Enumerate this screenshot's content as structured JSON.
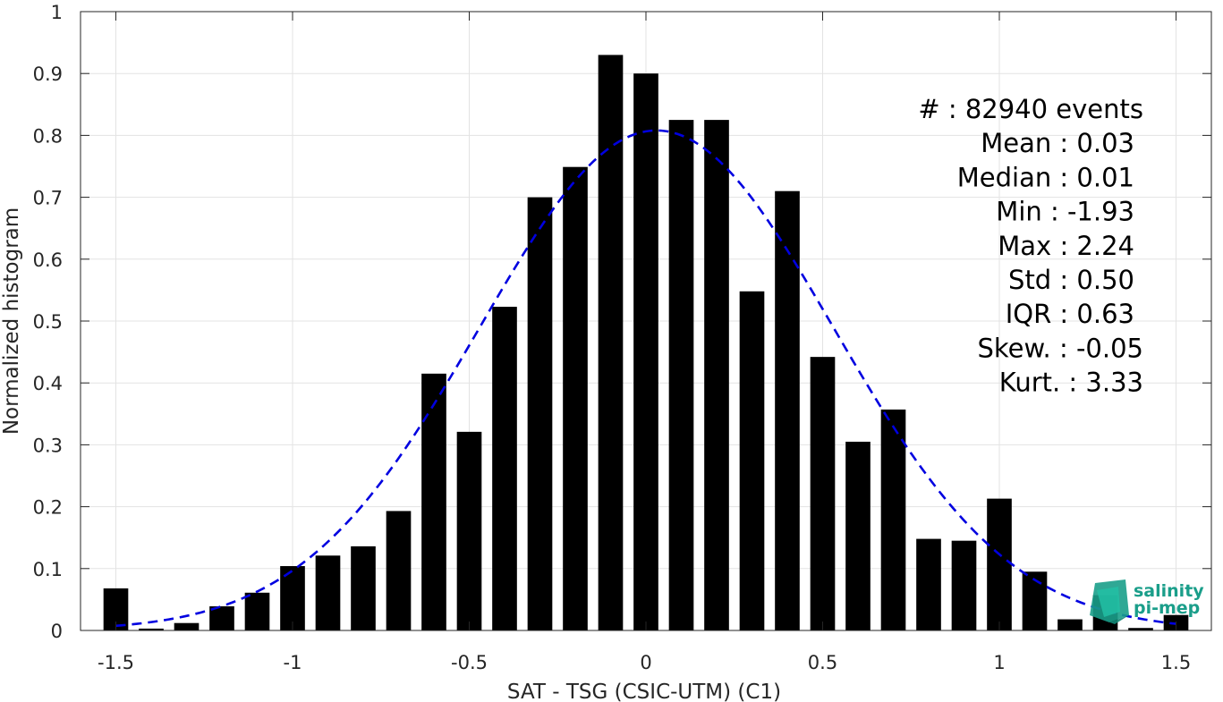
{
  "chart_data": {
    "type": "bar",
    "xlabel": "SAT - TSG (CSIC-UTM) (C1)",
    "ylabel": "Normalized histogram",
    "xlim": [
      -1.6,
      1.6
    ],
    "ylim": [
      0,
      1
    ],
    "xticks": [
      -1.5,
      -1,
      -0.5,
      0,
      0.5,
      1,
      1.5
    ],
    "xtick_labels": [
      "-1.5",
      "-1",
      "-0.5",
      "0",
      "0.5",
      "1",
      "1.5"
    ],
    "yticks": [
      0,
      0.1,
      0.2,
      0.3,
      0.4,
      0.5,
      0.6,
      0.7,
      0.8,
      0.9,
      1
    ],
    "ytick_labels": [
      "0",
      "0.1",
      "0.2",
      "0.3",
      "0.4",
      "0.5",
      "0.6",
      "0.7",
      "0.8",
      "0.9",
      "1"
    ],
    "grid": true,
    "bin_width": 0.1,
    "bins": [
      {
        "x": -1.5,
        "y": 0.068
      },
      {
        "x": -1.4,
        "y": 0.003
      },
      {
        "x": -1.3,
        "y": 0.012
      },
      {
        "x": -1.2,
        "y": 0.039
      },
      {
        "x": -1.1,
        "y": 0.061
      },
      {
        "x": -1.0,
        "y": 0.104
      },
      {
        "x": -0.9,
        "y": 0.121
      },
      {
        "x": -0.8,
        "y": 0.136
      },
      {
        "x": -0.7,
        "y": 0.193
      },
      {
        "x": -0.6,
        "y": 0.415
      },
      {
        "x": -0.5,
        "y": 0.321
      },
      {
        "x": -0.4,
        "y": 0.523
      },
      {
        "x": -0.3,
        "y": 0.7
      },
      {
        "x": -0.2,
        "y": 0.749
      },
      {
        "x": -0.1,
        "y": 0.93
      },
      {
        "x": 0.0,
        "y": 0.9
      },
      {
        "x": 0.1,
        "y": 0.825
      },
      {
        "x": 0.2,
        "y": 0.825
      },
      {
        "x": 0.3,
        "y": 0.548
      },
      {
        "x": 0.4,
        "y": 0.71
      },
      {
        "x": 0.5,
        "y": 0.442
      },
      {
        "x": 0.6,
        "y": 0.305
      },
      {
        "x": 0.7,
        "y": 0.357
      },
      {
        "x": 0.8,
        "y": 0.148
      },
      {
        "x": 0.9,
        "y": 0.145
      },
      {
        "x": 1.0,
        "y": 0.213
      },
      {
        "x": 1.1,
        "y": 0.095
      },
      {
        "x": 1.2,
        "y": 0.018
      },
      {
        "x": 1.3,
        "y": 0.057
      },
      {
        "x": 1.4,
        "y": 0.004
      },
      {
        "x": 1.5,
        "y": 0.025
      }
    ],
    "fit_curve": {
      "style": "dashed",
      "color": "#0000e0",
      "peak": 0.808,
      "mean": 0.03,
      "std": 0.5,
      "x_range": [
        -1.5,
        1.5
      ]
    },
    "bar_color": "#000000",
    "stats": [
      "#  : 82940 events",
      "Mean : 0.03",
      "Median : 0.01",
      "Min : -1.93",
      "Max : 2.24",
      "Std : 0.50",
      "IQR : 0.63",
      "Skew. : -0.05",
      "Kurt. : 3.33"
    ]
  },
  "logo": {
    "line1": "salinity",
    "line2": "pi-mep",
    "color": "#1a9e8a"
  }
}
